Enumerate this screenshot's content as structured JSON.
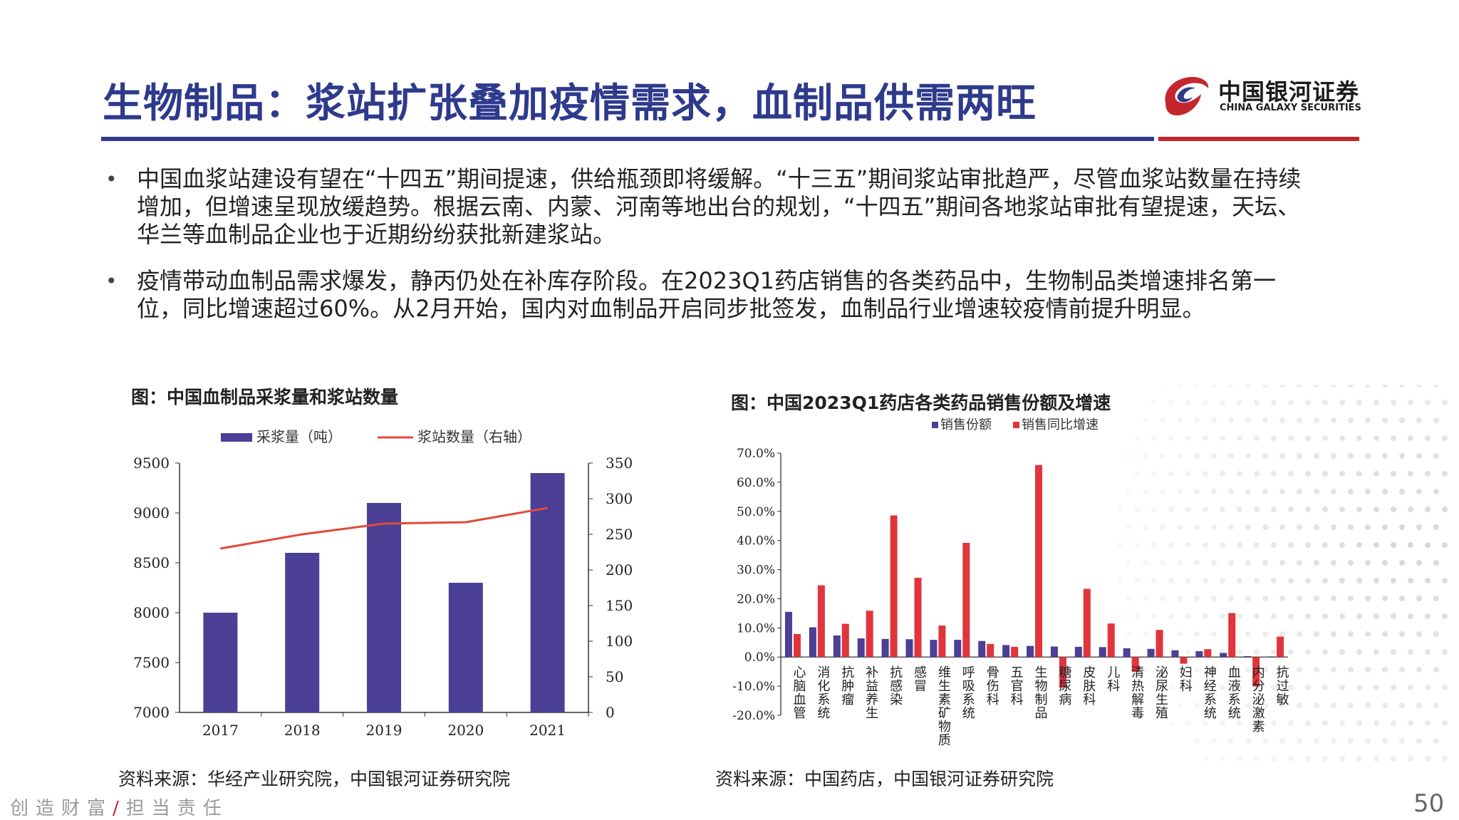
{
  "header": {
    "title": "生物制品：浆站扩张叠加疫情需求，血制品供需两旺",
    "logo_cn": "中国银河证券",
    "logo_en": "CHINA GALAXY SECURITIES"
  },
  "bullets": [
    "中国血浆站建设有望在“十四五”期间提速，供给瓶颈即将缓解。“十三五”期间浆站审批趋严，尽管血浆站数量在持续增加，但增速呈现放缓趋势。根据云南、内蒙、河南等地出台的规划，“十四五”期间各地浆站审批有望提速，天坛、华兰等血制品企业也于近期纷纷获批新建浆站。",
    "疫情带动血制品需求爆发，静丙仍处在补库存阶段。在2023Q1药店销售的各类药品中，生物制品类增速排名第一位，同比增速超过60%。从2月开始，国内对血制品开启同步批签发，血制品行业增速较疫情前提升明显。"
  ],
  "figures": {
    "left_title": "图：中国血制品采浆量和浆站数量",
    "left_source": "资料来源：华经产业研究院，中国银河证券研究院",
    "right_title": "图：中国2023Q1药店各类药品销售份额及增速",
    "right_source": "资料来源：中国药店，中国银河证券研究院"
  },
  "footer": {
    "slogan_a": "创造财富",
    "slash": "/",
    "slogan_b": "担当责任",
    "page": "50"
  },
  "colors": {
    "navy": "#2e3a8c",
    "bar_purple": "#4b3f96",
    "red": "#e0353b",
    "line_red": "#e04a3a"
  },
  "chart_data": [
    {
      "type": "bar",
      "categories": [
        "2017",
        "2018",
        "2019",
        "2020",
        "2021"
      ],
      "series": [
        {
          "name": "采浆量（吨）",
          "type": "bar",
          "axis": "left",
          "values": [
            8000,
            8600,
            9100,
            8300,
            9400
          ]
        },
        {
          "name": "浆站数量（右轴）",
          "type": "line",
          "axis": "right",
          "values": [
            230,
            250,
            265,
            267,
            287
          ]
        }
      ],
      "ylim": [
        7000,
        9500
      ],
      "yticks": [
        "9500",
        "9000",
        "8500",
        "8000",
        "7500",
        "7000"
      ],
      "y2lim": [
        0,
        350
      ],
      "y2ticks": [
        "350",
        "300",
        "250",
        "200",
        "150",
        "100",
        "50",
        "0"
      ],
      "legend": "top"
    },
    {
      "type": "bar",
      "categories": [
        "心脑血管",
        "消化系统",
        "抗肿瘤",
        "补益养生",
        "抗感染",
        "感冒",
        "维生素矿物质",
        "呼吸系统",
        "骨伤科",
        "五官科",
        "生物制品",
        "糖尿病",
        "皮肤科",
        "儿科",
        "清热解毒",
        "泌尿生殖",
        "妇科",
        "神经系统",
        "血液系统",
        "内分泌激素",
        "抗过敏"
      ],
      "series": [
        {
          "name": "销售份额",
          "values": [
            15.5,
            10.2,
            7.4,
            6.4,
            6.2,
            6.1,
            5.9,
            5.9,
            5.5,
            4.1,
            3.8,
            3.6,
            3.5,
            3.4,
            3.0,
            2.8,
            2.3,
            2.0,
            1.4,
            0.3,
            0.2
          ]
        },
        {
          "name": "销售同比增速",
          "values": [
            7.9,
            24.6,
            11.4,
            15.9,
            48.6,
            27.2,
            10.8,
            39.2,
            4.5,
            3.5,
            65.9,
            -10.5,
            23.4,
            11.5,
            -5.1,
            9.3,
            -2.3,
            2.7,
            15.1,
            -10.1,
            7.0
          ]
        }
      ],
      "ylim": [
        -20,
        70
      ],
      "yticks": [
        "70.0%",
        "60.0%",
        "50.0%",
        "40.0%",
        "30.0%",
        "20.0%",
        "10.0%",
        "0.0%",
        "-10.0%",
        "-20.0%"
      ],
      "legend": "top"
    }
  ]
}
